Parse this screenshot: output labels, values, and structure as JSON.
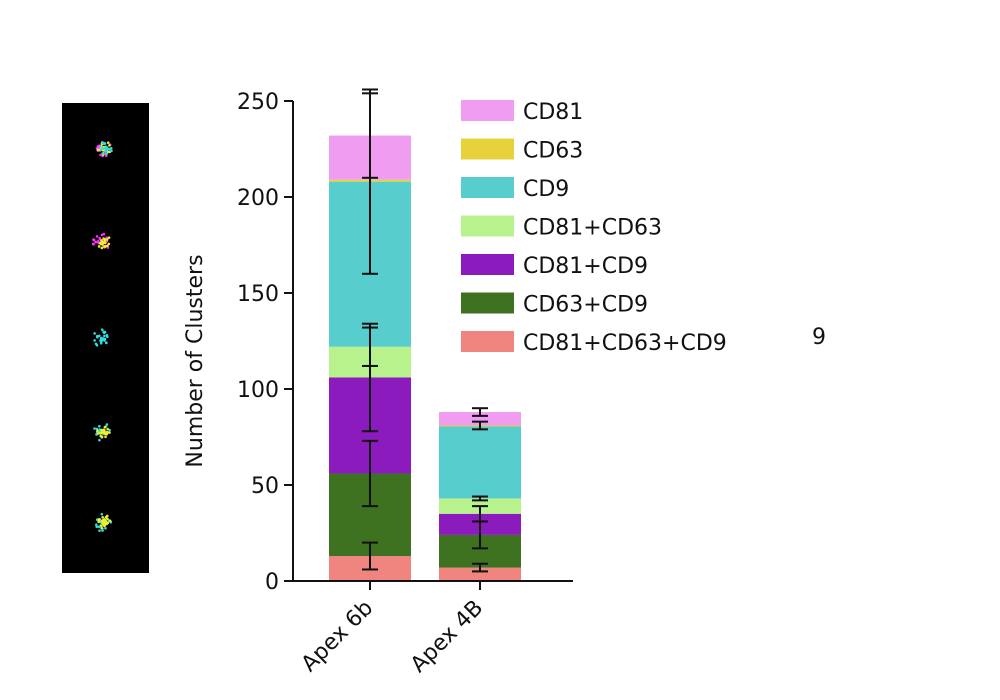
{
  "figure": {
    "stray_text": "9"
  },
  "micrograph": {
    "background": "#000000",
    "spots": [
      {
        "colors": [
          "#ff33ff",
          "#eeee33",
          "#33dddd"
        ]
      },
      {
        "colors": [
          "#ff33ff",
          "#eeee33"
        ]
      },
      {
        "colors": [
          "#33dddd"
        ]
      },
      {
        "colors": [
          "#33dddd",
          "#eeee33"
        ]
      },
      {
        "colors": [
          "#33dddd",
          "#eeee33"
        ]
      }
    ]
  },
  "chart_data": {
    "type": "bar",
    "stacked": true,
    "title": "",
    "xlabel": "",
    "ylabel": "Number of Clusters",
    "ylim": [
      0,
      250
    ],
    "yticks": [
      0,
      50,
      100,
      150,
      200,
      250
    ],
    "categories": [
      "Apex 6b",
      "Apex 4B"
    ],
    "legend_position": "top-right",
    "series": [
      {
        "name": "CD81+CD63+CD9",
        "color": "#f08580",
        "values": [
          13,
          7
        ],
        "errors": [
          7,
          2
        ]
      },
      {
        "name": "CD63+CD9",
        "color": "#3f7220",
        "values": [
          43,
          17
        ],
        "errors": [
          17,
          7
        ]
      },
      {
        "name": "CD81+CD9",
        "color": "#8c1bbd",
        "values": [
          50,
          11
        ],
        "errors": [
          28,
          4
        ]
      },
      {
        "name": "CD81+CD63",
        "color": "#b8f28c",
        "values": [
          16,
          8
        ],
        "errors": [
          10,
          1
        ]
      },
      {
        "name": "CD9",
        "color": "#58cdcd",
        "values": [
          86,
          38
        ],
        "errors": [
          48,
          2
        ]
      },
      {
        "name": "CD63",
        "color": "#e8d23c",
        "values": [
          1,
          0
        ],
        "errors": [
          0,
          0
        ]
      },
      {
        "name": "CD81",
        "color": "#f09cf0",
        "values": [
          23,
          7
        ],
        "errors": [
          22,
          2
        ]
      }
    ],
    "legend_order": [
      "CD81",
      "CD63",
      "CD9",
      "CD81+CD63",
      "CD81+CD9",
      "CD63+CD9",
      "CD81+CD63+CD9"
    ]
  }
}
